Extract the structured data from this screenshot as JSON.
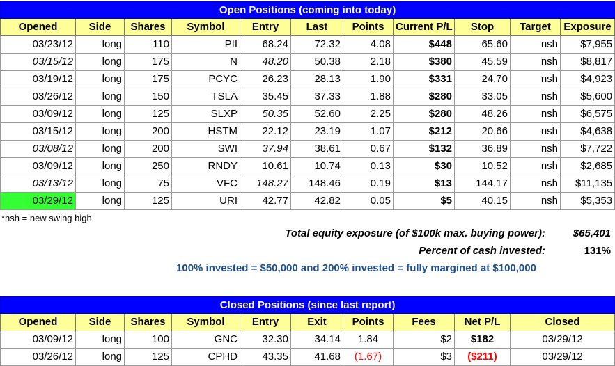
{
  "open": {
    "title": "Open Positions (coming into today)",
    "headers": [
      "Opened",
      "Side",
      "Shares",
      "Symbol",
      "Entry",
      "Last",
      "Points",
      "Current P/L",
      "Stop",
      "Target",
      "Exposure"
    ],
    "rows": [
      {
        "opened": "03/23/12",
        "side": "long",
        "shares": "110",
        "symbol": "PII",
        "entry": "68.24",
        "last": "72.32",
        "points": "4.08",
        "pl": "$448",
        "stop": "65.60",
        "target": "nsh",
        "exposure": "$7,955",
        "opened_italic": false,
        "entry_italic": false,
        "highlight": false
      },
      {
        "opened": "03/15/12",
        "side": "long",
        "shares": "175",
        "symbol": "N",
        "entry": "48.20",
        "last": "50.38",
        "points": "2.18",
        "pl": "$380",
        "stop": "45.59",
        "target": "nsh",
        "exposure": "$8,817",
        "opened_italic": true,
        "entry_italic": true,
        "highlight": false
      },
      {
        "opened": "03/19/12",
        "side": "long",
        "shares": "175",
        "symbol": "PCYC",
        "entry": "26.23",
        "last": "28.13",
        "points": "1.90",
        "pl": "$331",
        "stop": "24.70",
        "target": "nsh",
        "exposure": "$4,923",
        "opened_italic": false,
        "entry_italic": false,
        "highlight": false
      },
      {
        "opened": "03/26/12",
        "side": "long",
        "shares": "150",
        "symbol": "TSLA",
        "entry": "35.45",
        "last": "37.33",
        "points": "1.88",
        "pl": "$280",
        "stop": "33.05",
        "target": "nsh",
        "exposure": "$5,600",
        "opened_italic": false,
        "entry_italic": false,
        "highlight": false
      },
      {
        "opened": "03/09/12",
        "side": "long",
        "shares": "125",
        "symbol": "SLXP",
        "entry": "50.35",
        "last": "52.60",
        "points": "2.25",
        "pl": "$280",
        "stop": "48.26",
        "target": "nsh",
        "exposure": "$6,575",
        "opened_italic": false,
        "entry_italic": true,
        "highlight": false
      },
      {
        "opened": "03/15/12",
        "side": "long",
        "shares": "200",
        "symbol": "HSTM",
        "entry": "22.12",
        "last": "23.19",
        "points": "1.07",
        "pl": "$212",
        "stop": "20.66",
        "target": "nsh",
        "exposure": "$4,638",
        "opened_italic": false,
        "entry_italic": false,
        "highlight": false
      },
      {
        "opened": "03/08/12",
        "side": "long",
        "shares": "200",
        "symbol": "SWI",
        "entry": "37.94",
        "last": "38.61",
        "points": "0.67",
        "pl": "$132",
        "stop": "36.89",
        "target": "nsh",
        "exposure": "$7,722",
        "opened_italic": true,
        "entry_italic": true,
        "highlight": false
      },
      {
        "opened": "03/09/12",
        "side": "long",
        "shares": "250",
        "symbol": "RNDY",
        "entry": "10.61",
        "last": "10.74",
        "points": "0.13",
        "pl": "$30",
        "stop": "10.52",
        "target": "nsh",
        "exposure": "$2,685",
        "opened_italic": false,
        "entry_italic": false,
        "highlight": false
      },
      {
        "opened": "03/13/12",
        "side": "long",
        "shares": "75",
        "symbol": "VFC",
        "entry": "148.27",
        "last": "148.46",
        "points": "0.19",
        "pl": "$13",
        "stop": "144.17",
        "target": "nsh",
        "exposure": "$11,135",
        "opened_italic": true,
        "entry_italic": true,
        "highlight": false
      },
      {
        "opened": "03/29/12",
        "side": "long",
        "shares": "125",
        "symbol": "URI",
        "entry": "42.77",
        "last": "42.82",
        "points": "0.05",
        "pl": "$5",
        "stop": "40.15",
        "target": "nsh",
        "exposure": "$5,353",
        "opened_italic": false,
        "entry_italic": false,
        "highlight": true
      }
    ]
  },
  "note": "*nsh = new swing high",
  "summary": {
    "exposure_label": "Total equity exposure (of $100k max. buying power):",
    "exposure_value": "$65,401",
    "cash_label": "Percent of cash invested:",
    "cash_value": "131%",
    "invested_note": "100% invested = $50,000 and 200% invested = fully margined at $100,000"
  },
  "closed": {
    "title": "Closed Positions (since last report)",
    "headers": [
      "Opened",
      "Side",
      "Shares",
      "Symbol",
      "Entry",
      "Exit",
      "Points",
      "Fees",
      "Net P/L",
      "Closed"
    ],
    "rows": [
      {
        "opened": "03/09/12",
        "side": "long",
        "shares": "100",
        "symbol": "GNC",
        "entry": "32.30",
        "exit": "34.14",
        "points": "1.84",
        "fees": "$2",
        "net": "$182",
        "closed": "03/29/12",
        "negative": false
      },
      {
        "opened": "03/26/12",
        "side": "long",
        "shares": "125",
        "symbol": "CPHD",
        "entry": "43.35",
        "exit": "41.68",
        "points": "(1.67)",
        "fees": "$3",
        "net": "($211)",
        "closed": "03/29/12",
        "negative": true
      }
    ]
  },
  "colors": {
    "title_bg": "#0000ff",
    "header_bg": "#ffff99",
    "highlight": "#33ff33",
    "negative": "#ff0000",
    "note_blue": "#1f4e8c"
  }
}
